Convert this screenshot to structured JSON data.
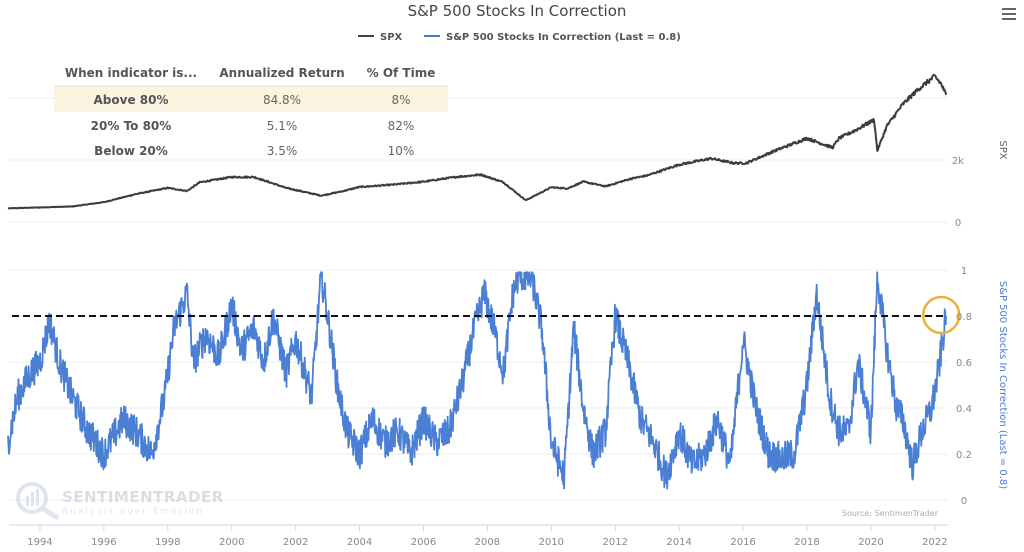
{
  "menu": {
    "icon": "hamburger-menu-icon"
  },
  "chart_data": {
    "type": "line",
    "title": "S&P 500 Stocks In Correction",
    "legend": {
      "placement": "top-center",
      "entries": [
        {
          "name": "SPX",
          "color": "#444444"
        },
        {
          "name": "S&P 500 Stocks In Correction (Last = 0.8)",
          "color": "#4a7fd4"
        }
      ]
    },
    "x_axis": {
      "ticks": [
        "1994",
        "1996",
        "1998",
        "2000",
        "2002",
        "2004",
        "2006",
        "2008",
        "2010",
        "2012",
        "2014",
        "2016",
        "2018",
        "2020",
        "2022"
      ],
      "range": [
        1993.0,
        2022.35
      ]
    },
    "panels": [
      {
        "name": "SPX",
        "ylabel": "SPX",
        "ylim": [
          0,
          4800
        ],
        "y_ticks": [
          {
            "value": 0,
            "label": "0"
          },
          {
            "value": 2000,
            "label": "2k"
          },
          {
            "value": 4000,
            "label": ""
          }
        ],
        "series": {
          "name": "SPX",
          "color": "#444444",
          "x": [
            1993.0,
            1994.0,
            1995.0,
            1996.0,
            1997.0,
            1998.0,
            1998.6,
            1999.0,
            2000.0,
            2000.7,
            2001.7,
            2002.8,
            2003.5,
            2004.0,
            2005.0,
            2006.0,
            2007.0,
            2007.8,
            2008.5,
            2009.2,
            2010.0,
            2010.5,
            2011.0,
            2011.7,
            2012.5,
            2013.0,
            2014.0,
            2015.0,
            2015.7,
            2016.1,
            2017.0,
            2018.0,
            2018.8,
            2019.0,
            2019.5,
            2020.1,
            2020.2,
            2020.5,
            2021.0,
            2021.5,
            2022.0,
            2022.2,
            2022.35
          ],
          "values": [
            440,
            470,
            500,
            640,
            900,
            1100,
            1000,
            1280,
            1450,
            1450,
            1100,
            850,
            1000,
            1130,
            1200,
            1300,
            1450,
            1530,
            1280,
            700,
            1120,
            1080,
            1300,
            1150,
            1400,
            1500,
            1850,
            2050,
            1900,
            1900,
            2300,
            2700,
            2400,
            2700,
            2950,
            3300,
            2300,
            3100,
            3800,
            4300,
            4700,
            4450,
            4100
          ]
        }
      },
      {
        "name": "S&P 500 Stocks In Correction",
        "ylabel": "S&P 500 Stocks In Correction (Last = 0.8)",
        "ylim": [
          0,
          1
        ],
        "y_ticks": [
          {
            "value": 0,
            "label": "0"
          },
          {
            "value": 0.2,
            "label": "0.2"
          },
          {
            "value": 0.4,
            "label": "0.4"
          },
          {
            "value": 0.6,
            "label": "0.6"
          },
          {
            "value": 0.8,
            "label": "0.8"
          },
          {
            "value": 1,
            "label": "1"
          }
        ],
        "threshold": {
          "value": 0.8,
          "style": "dashed",
          "color": "#111111"
        },
        "highlight": {
          "x": 2022.2,
          "y": 0.8,
          "color": "#e8b13a",
          "shape": "circle"
        },
        "series": {
          "name": "S&P 500 Stocks In Correction",
          "color": "#4a7fd4",
          "x": [
            1993.0,
            1993.3,
            1993.7,
            1994.0,
            1994.3,
            1994.6,
            1995.0,
            1995.5,
            1996.0,
            1996.6,
            1997.0,
            1997.5,
            1997.9,
            1998.2,
            1998.6,
            1998.8,
            1999.2,
            1999.6,
            2000.0,
            2000.3,
            2000.7,
            2001.0,
            2001.3,
            2001.7,
            2002.0,
            2002.5,
            2002.8,
            2003.0,
            2003.3,
            2003.6,
            2004.0,
            2004.4,
            2004.8,
            2005.2,
            2005.6,
            2006.0,
            2006.4,
            2006.8,
            2007.2,
            2007.6,
            2007.9,
            2008.2,
            2008.5,
            2008.8,
            2009.0,
            2009.4,
            2009.7,
            2010.0,
            2010.4,
            2010.7,
            2011.0,
            2011.3,
            2011.7,
            2012.0,
            2012.4,
            2012.8,
            2013.2,
            2013.6,
            2014.0,
            2014.4,
            2014.8,
            2015.2,
            2015.6,
            2016.0,
            2016.4,
            2016.8,
            2017.2,
            2017.6,
            2018.0,
            2018.3,
            2018.7,
            2019.0,
            2019.3,
            2019.6,
            2020.0,
            2020.2,
            2020.5,
            2020.8,
            2021.0,
            2021.3,
            2021.6,
            2021.9,
            2022.1,
            2022.35
          ],
          "values": [
            0.25,
            0.45,
            0.55,
            0.6,
            0.78,
            0.6,
            0.45,
            0.3,
            0.2,
            0.35,
            0.3,
            0.2,
            0.45,
            0.75,
            0.9,
            0.6,
            0.72,
            0.62,
            0.85,
            0.65,
            0.75,
            0.6,
            0.8,
            0.55,
            0.7,
            0.45,
            0.98,
            0.8,
            0.5,
            0.3,
            0.2,
            0.35,
            0.25,
            0.3,
            0.2,
            0.35,
            0.25,
            0.3,
            0.5,
            0.75,
            0.9,
            0.75,
            0.55,
            0.9,
            0.98,
            0.96,
            0.75,
            0.25,
            0.1,
            0.75,
            0.4,
            0.2,
            0.3,
            0.8,
            0.6,
            0.35,
            0.25,
            0.1,
            0.3,
            0.15,
            0.2,
            0.35,
            0.15,
            0.7,
            0.4,
            0.2,
            0.18,
            0.2,
            0.5,
            0.9,
            0.45,
            0.3,
            0.3,
            0.6,
            0.3,
            0.98,
            0.65,
            0.4,
            0.35,
            0.15,
            0.3,
            0.4,
            0.55,
            0.8
          ]
        }
      }
    ],
    "table": {
      "headers": [
        "When indicator is...",
        "Annualized Return",
        "% Of Time"
      ],
      "rows": [
        {
          "condition": "Above 80%",
          "annualized_return": "84.8%",
          "pct_of_time": "8%",
          "highlighted": true
        },
        {
          "condition": "20% To 80%",
          "annualized_return": "5.1%",
          "pct_of_time": "82%",
          "highlighted": false
        },
        {
          "condition": "Below 20%",
          "annualized_return": "3.5%",
          "pct_of_time": "10%",
          "highlighted": false
        }
      ],
      "highlight_color": "#fbf4e0"
    },
    "watermark": {
      "name": "SENTIMENTRADER",
      "tagline": "Analysis over Emotion"
    },
    "source": "Source: SentimenTrader"
  }
}
